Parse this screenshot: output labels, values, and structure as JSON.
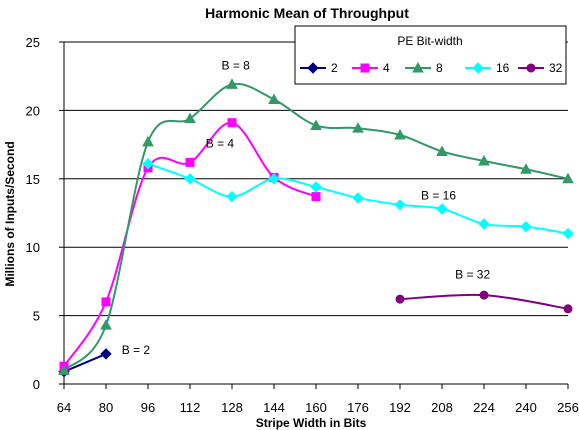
{
  "chart_data": {
    "type": "line",
    "title": "Harmonic Mean of Throughput",
    "xlabel": "Stripe Width in Bits",
    "ylabel": "Millions of Inputs/Second",
    "x_ticks": [
      64,
      80,
      96,
      112,
      128,
      144,
      160,
      176,
      192,
      208,
      224,
      240,
      256
    ],
    "y_ticks": [
      0,
      5,
      10,
      15,
      20,
      25
    ],
    "xlim": [
      64,
      256
    ],
    "ylim": [
      0,
      25
    ],
    "grid": "horizontal",
    "legend": {
      "title": "PE Bit-width",
      "placement": "top-right"
    },
    "series": [
      {
        "name": "2",
        "color": "#000080",
        "marker": "diamond",
        "x": [
          64,
          80
        ],
        "y": [
          0.9,
          2.2
        ]
      },
      {
        "name": "4",
        "color": "#ff00ff",
        "marker": "square",
        "x": [
          64,
          80,
          96,
          112,
          128,
          144,
          160
        ],
        "y": [
          1.3,
          6.0,
          15.8,
          16.2,
          19.1,
          15.1,
          13.7
        ]
      },
      {
        "name": "8",
        "color": "#339966",
        "marker": "triangle",
        "x": [
          64,
          80,
          96,
          112,
          128,
          144,
          160,
          176,
          192,
          208,
          224,
          240,
          256
        ],
        "y": [
          1.0,
          4.3,
          17.7,
          19.4,
          21.9,
          20.8,
          18.9,
          18.7,
          18.2,
          17.0,
          16.3,
          15.7,
          15.0
        ]
      },
      {
        "name": "16",
        "color": "#00ffff",
        "marker": "diamond",
        "x": [
          96,
          112,
          128,
          144,
          160,
          176,
          192,
          208,
          224,
          240,
          256
        ],
        "y": [
          16.1,
          15.0,
          13.7,
          15.0,
          14.4,
          13.6,
          13.1,
          12.8,
          11.7,
          11.5,
          11.0
        ]
      },
      {
        "name": "32",
        "color": "#800080",
        "marker": "circle",
        "x": [
          192,
          224,
          256
        ],
        "y": [
          6.2,
          6.5,
          5.5
        ]
      }
    ],
    "annotations": [
      {
        "text": "B = 2",
        "x": 86,
        "y": 2.2
      },
      {
        "text": "B = 4",
        "x": 118,
        "y": 17.3
      },
      {
        "text": "B = 8",
        "x": 124,
        "y": 23.0
      },
      {
        "text": "B = 16",
        "x": 200,
        "y": 13.5
      },
      {
        "text": "B = 32",
        "x": 213,
        "y": 7.7
      }
    ]
  }
}
